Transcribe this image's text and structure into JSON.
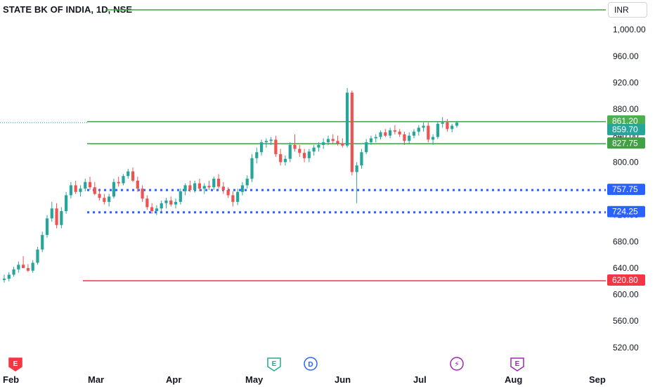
{
  "header": {
    "title": "STATE BK OF INDIA, 1D, NSE"
  },
  "currency_button": {
    "label": "INR"
  },
  "colors": {
    "up": "#26a69a",
    "down": "#ef5350",
    "support": "#2962ff",
    "resistance_green": "#43a047",
    "low_red": "#f23645",
    "badge_current": "#26a69a",
    "badge_high": "#4caf50"
  },
  "chart_data": {
    "type": "candlestick",
    "title": "STATE BK OF INDIA, 1D, NSE",
    "ylim": [
      505,
      1030
    ],
    "y_ticks": [
      "1,000.00",
      "960.00",
      "920.00",
      "880.00",
      "840.00",
      "800.00",
      "760.00",
      "720.00",
      "680.00",
      "640.00",
      "600.00",
      "560.00",
      "520.00"
    ],
    "x_ticks": [
      "Feb",
      "Mar",
      "Apr",
      "May",
      "Jun",
      "Jul",
      "Aug",
      "Sep"
    ],
    "horizontal_levels": [
      {
        "label": "861.20",
        "value": 861.2,
        "style": "solid",
        "color": "#43a047"
      },
      {
        "label": "827.75",
        "value": 827.75,
        "style": "solid",
        "color": "#43a047"
      },
      {
        "label": "757.75",
        "value": 757.75,
        "style": "dotted",
        "color": "#2962ff"
      },
      {
        "label": "724.25",
        "value": 724.25,
        "style": "dotted",
        "color": "#2962ff"
      },
      {
        "label": "620.80",
        "value": 620.8,
        "style": "solid",
        "color": "#f23645"
      }
    ],
    "top_line": {
      "value": 1030.0,
      "color": "#43a047"
    },
    "last_price": {
      "label": "859.70",
      "value": 859.7
    },
    "events": [
      {
        "type": "earnings",
        "symbol": "E",
        "color": "#f23645",
        "date": "Feb"
      },
      {
        "type": "earnings",
        "symbol": "E",
        "color": "#22ab94",
        "date": "May"
      },
      {
        "type": "dividend",
        "symbol": "D",
        "color": "#2962ff",
        "date": "May"
      },
      {
        "type": "split",
        "symbol": "⚡",
        "color": "#9c27b0",
        "date": "Jul"
      },
      {
        "type": "earnings",
        "symbol": "E",
        "color": "#9c27b0",
        "date": "Aug"
      }
    ],
    "candles": [
      {
        "o": 622,
        "h": 630,
        "l": 618,
        "c": 624
      },
      {
        "o": 624,
        "h": 634,
        "l": 620,
        "c": 630
      },
      {
        "o": 630,
        "h": 642,
        "l": 627,
        "c": 638
      },
      {
        "o": 638,
        "h": 650,
        "l": 633,
        "c": 645
      },
      {
        "o": 645,
        "h": 658,
        "l": 640,
        "c": 640
      },
      {
        "o": 640,
        "h": 646,
        "l": 634,
        "c": 636
      },
      {
        "o": 636,
        "h": 652,
        "l": 633,
        "c": 648
      },
      {
        "o": 648,
        "h": 672,
        "l": 645,
        "c": 668
      },
      {
        "o": 668,
        "h": 695,
        "l": 664,
        "c": 690
      },
      {
        "o": 690,
        "h": 720,
        "l": 686,
        "c": 715
      },
      {
        "o": 715,
        "h": 740,
        "l": 710,
        "c": 730
      },
      {
        "o": 730,
        "h": 738,
        "l": 700,
        "c": 705
      },
      {
        "o": 705,
        "h": 732,
        "l": 700,
        "c": 726
      },
      {
        "o": 726,
        "h": 755,
        "l": 722,
        "c": 750
      },
      {
        "o": 750,
        "h": 770,
        "l": 745,
        "c": 765
      },
      {
        "o": 765,
        "h": 772,
        "l": 752,
        "c": 755
      },
      {
        "o": 755,
        "h": 765,
        "l": 748,
        "c": 760
      },
      {
        "o": 760,
        "h": 775,
        "l": 756,
        "c": 770
      },
      {
        "o": 770,
        "h": 778,
        "l": 758,
        "c": 762
      },
      {
        "o": 762,
        "h": 770,
        "l": 750,
        "c": 752
      },
      {
        "o": 752,
        "h": 760,
        "l": 742,
        "c": 746
      },
      {
        "o": 746,
        "h": 752,
        "l": 736,
        "c": 740
      },
      {
        "o": 740,
        "h": 752,
        "l": 733,
        "c": 748
      },
      {
        "o": 748,
        "h": 775,
        "l": 745,
        "c": 770
      },
      {
        "o": 770,
        "h": 778,
        "l": 763,
        "c": 768
      },
      {
        "o": 768,
        "h": 782,
        "l": 765,
        "c": 779
      },
      {
        "o": 779,
        "h": 790,
        "l": 775,
        "c": 786
      },
      {
        "o": 786,
        "h": 792,
        "l": 770,
        "c": 772
      },
      {
        "o": 772,
        "h": 778,
        "l": 755,
        "c": 760
      },
      {
        "o": 760,
        "h": 765,
        "l": 740,
        "c": 745
      },
      {
        "o": 745,
        "h": 750,
        "l": 728,
        "c": 732
      },
      {
        "o": 732,
        "h": 738,
        "l": 722,
        "c": 726
      },
      {
        "o": 726,
        "h": 735,
        "l": 720,
        "c": 730
      },
      {
        "o": 730,
        "h": 742,
        "l": 725,
        "c": 738
      },
      {
        "o": 738,
        "h": 746,
        "l": 730,
        "c": 742
      },
      {
        "o": 742,
        "h": 748,
        "l": 733,
        "c": 736
      },
      {
        "o": 736,
        "h": 745,
        "l": 730,
        "c": 740
      },
      {
        "o": 740,
        "h": 760,
        "l": 736,
        "c": 756
      },
      {
        "o": 756,
        "h": 768,
        "l": 750,
        "c": 765
      },
      {
        "o": 765,
        "h": 772,
        "l": 755,
        "c": 758
      },
      {
        "o": 758,
        "h": 772,
        "l": 754,
        "c": 768
      },
      {
        "o": 768,
        "h": 775,
        "l": 756,
        "c": 760
      },
      {
        "o": 760,
        "h": 768,
        "l": 752,
        "c": 764
      },
      {
        "o": 764,
        "h": 772,
        "l": 758,
        "c": 762
      },
      {
        "o": 762,
        "h": 778,
        "l": 758,
        "c": 775
      },
      {
        "o": 775,
        "h": 782,
        "l": 760,
        "c": 763
      },
      {
        "o": 763,
        "h": 770,
        "l": 752,
        "c": 758
      },
      {
        "o": 758,
        "h": 762,
        "l": 746,
        "c": 750
      },
      {
        "o": 750,
        "h": 756,
        "l": 733,
        "c": 740
      },
      {
        "o": 740,
        "h": 760,
        "l": 735,
        "c": 755
      },
      {
        "o": 755,
        "h": 770,
        "l": 750,
        "c": 765
      },
      {
        "o": 765,
        "h": 780,
        "l": 760,
        "c": 775
      },
      {
        "o": 775,
        "h": 812,
        "l": 770,
        "c": 806
      },
      {
        "o": 806,
        "h": 822,
        "l": 798,
        "c": 815
      },
      {
        "o": 815,
        "h": 834,
        "l": 810,
        "c": 830
      },
      {
        "o": 830,
        "h": 836,
        "l": 822,
        "c": 832
      },
      {
        "o": 832,
        "h": 838,
        "l": 826,
        "c": 834
      },
      {
        "o": 834,
        "h": 840,
        "l": 808,
        "c": 812
      },
      {
        "o": 812,
        "h": 820,
        "l": 795,
        "c": 800
      },
      {
        "o": 800,
        "h": 810,
        "l": 795,
        "c": 805
      },
      {
        "o": 805,
        "h": 830,
        "l": 800,
        "c": 826
      },
      {
        "o": 826,
        "h": 842,
        "l": 816,
        "c": 820
      },
      {
        "o": 820,
        "h": 826,
        "l": 808,
        "c": 814
      },
      {
        "o": 814,
        "h": 820,
        "l": 800,
        "c": 806
      },
      {
        "o": 806,
        "h": 820,
        "l": 800,
        "c": 816
      },
      {
        "o": 816,
        "h": 826,
        "l": 810,
        "c": 822
      },
      {
        "o": 822,
        "h": 830,
        "l": 816,
        "c": 826
      },
      {
        "o": 826,
        "h": 836,
        "l": 820,
        "c": 830
      },
      {
        "o": 830,
        "h": 840,
        "l": 826,
        "c": 835
      },
      {
        "o": 835,
        "h": 842,
        "l": 828,
        "c": 832
      },
      {
        "o": 832,
        "h": 840,
        "l": 825,
        "c": 828
      },
      {
        "o": 828,
        "h": 836,
        "l": 822,
        "c": 825
      },
      {
        "o": 825,
        "h": 912,
        "l": 822,
        "c": 905
      },
      {
        "o": 905,
        "h": 908,
        "l": 780,
        "c": 785
      },
      {
        "o": 785,
        "h": 800,
        "l": 738,
        "c": 795
      },
      {
        "o": 795,
        "h": 820,
        "l": 790,
        "c": 815
      },
      {
        "o": 815,
        "h": 835,
        "l": 812,
        "c": 830
      },
      {
        "o": 830,
        "h": 840,
        "l": 826,
        "c": 836
      },
      {
        "o": 836,
        "h": 842,
        "l": 830,
        "c": 838
      },
      {
        "o": 838,
        "h": 848,
        "l": 834,
        "c": 845
      },
      {
        "o": 845,
        "h": 850,
        "l": 838,
        "c": 840
      },
      {
        "o": 840,
        "h": 852,
        "l": 836,
        "c": 848
      },
      {
        "o": 848,
        "h": 856,
        "l": 842,
        "c": 846
      },
      {
        "o": 846,
        "h": 850,
        "l": 838,
        "c": 842
      },
      {
        "o": 842,
        "h": 846,
        "l": 826,
        "c": 832
      },
      {
        "o": 832,
        "h": 845,
        "l": 828,
        "c": 840
      },
      {
        "o": 840,
        "h": 850,
        "l": 836,
        "c": 846
      },
      {
        "o": 846,
        "h": 856,
        "l": 840,
        "c": 852
      },
      {
        "o": 852,
        "h": 860,
        "l": 846,
        "c": 855
      },
      {
        "o": 855,
        "h": 860,
        "l": 830,
        "c": 834
      },
      {
        "o": 834,
        "h": 842,
        "l": 826,
        "c": 838
      },
      {
        "o": 838,
        "h": 862,
        "l": 835,
        "c": 858
      },
      {
        "o": 858,
        "h": 868,
        "l": 852,
        "c": 860
      },
      {
        "o": 860,
        "h": 865,
        "l": 846,
        "c": 850
      },
      {
        "o": 850,
        "h": 858,
        "l": 845,
        "c": 855
      },
      {
        "o": 855,
        "h": 862,
        "l": 852,
        "c": 859.7
      }
    ]
  }
}
